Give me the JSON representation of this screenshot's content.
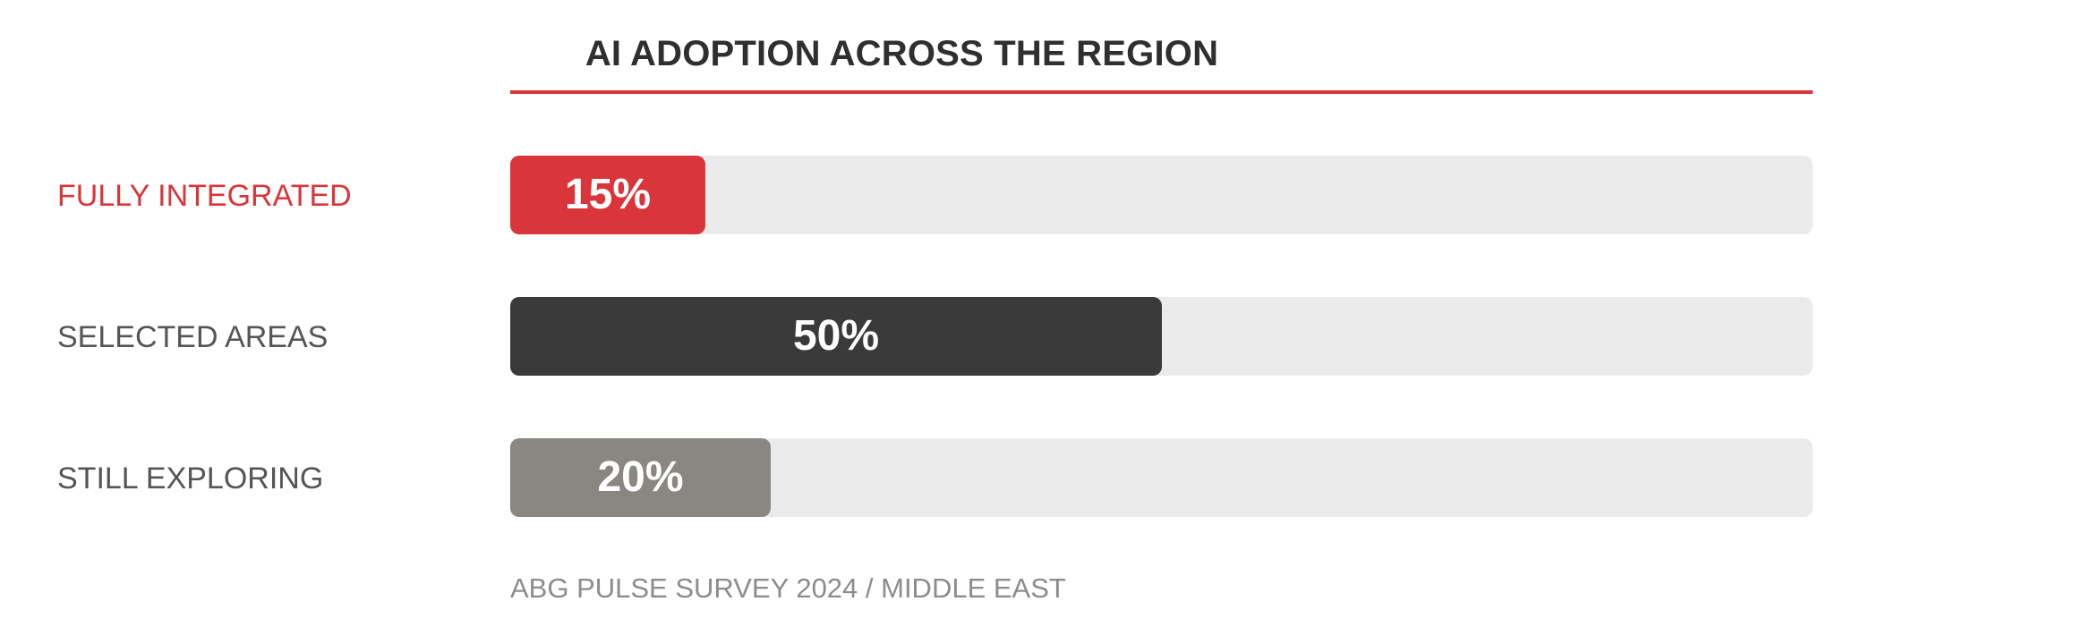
{
  "chart_data": {
    "type": "bar",
    "orientation": "horizontal",
    "title": "AI ADOPTION ACROSS THE REGION",
    "categories": [
      "FULLY INTEGRATED",
      "SELECTED AREAS",
      "STILL EXPLORING"
    ],
    "values": [
      15,
      50,
      20
    ],
    "value_labels": [
      "15%",
      "50%",
      "20%"
    ],
    "unit": "%",
    "xlim": [
      0,
      100
    ],
    "grid": false,
    "legend": "none",
    "bar_colors": [
      "#d9353a",
      "#3a3a3a",
      "#8a8782"
    ],
    "label_colors": [
      "#d9353a",
      "#555555",
      "#555555"
    ],
    "track_color": "#ebebeb",
    "source": "ABG PULSE SURVEY 2024 / MIDDLE EAST"
  },
  "colors": {
    "accent": "#d9353a",
    "title_text": "#2f2f2f",
    "source_text": "#8c8c8c"
  }
}
